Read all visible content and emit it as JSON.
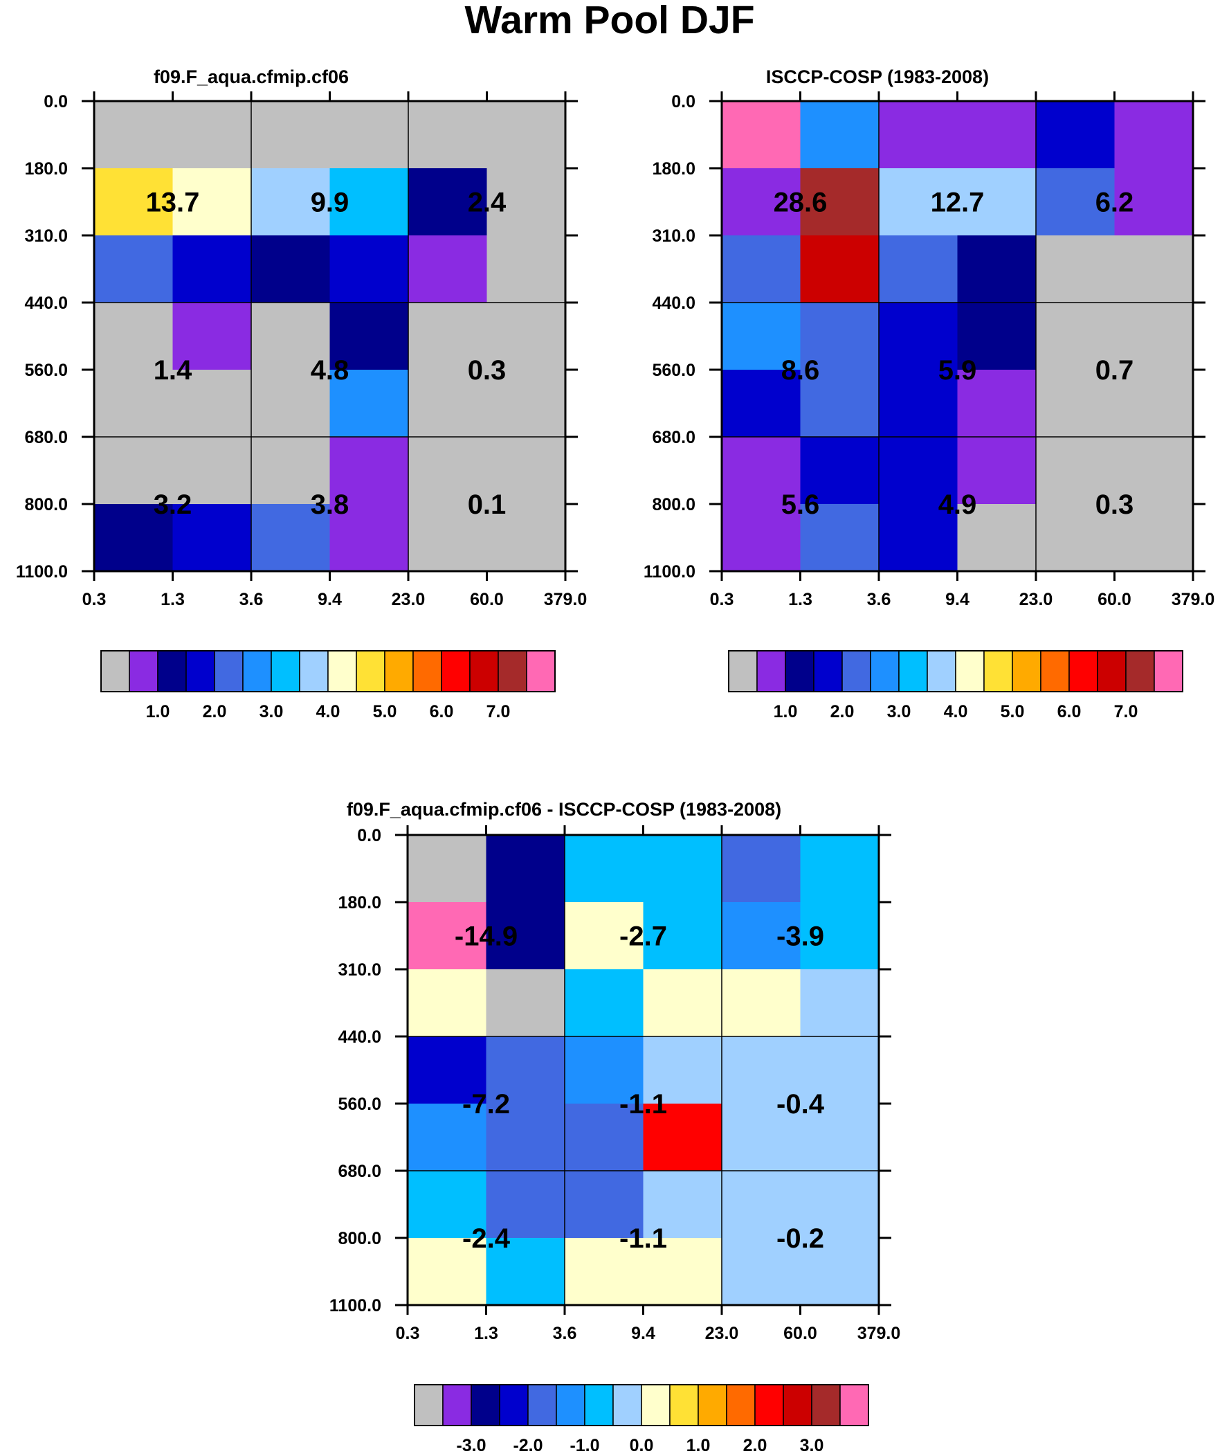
{
  "figure_title": "Warm Pool DJF",
  "colors": {
    "palette": [
      "#c0c0c0",
      "#8a2be2",
      "#00008b",
      "#0000cd",
      "#4169e1",
      "#1e90ff",
      "#00bfff",
      "#a0d0ff",
      "#ffffcc",
      "#ffe135",
      "#ffaa00",
      "#ff6a00",
      "#ff0000",
      "#cc0000",
      "#a52a2a",
      "#ff69b4"
    ],
    "grid_line": "#000000"
  },
  "chart_data": [
    {
      "type": "heatmap",
      "title": "f09.F_aqua.cfmip.cf06",
      "x_tick_labels": [
        "0.3",
        "1.3",
        "3.6",
        "9.4",
        "23.0",
        "60.0",
        "379.0"
      ],
      "y_tick_labels": [
        "0.0",
        "180.0",
        "310.0",
        "440.0",
        "560.0",
        "680.0",
        "800.0",
        "1100.0"
      ],
      "color_index": [
        [
          0,
          0,
          0,
          0,
          0,
          0
        ],
        [
          9,
          8,
          7,
          6,
          2,
          0
        ],
        [
          4,
          3,
          2,
          3,
          1,
          0
        ],
        [
          0,
          1,
          0,
          2,
          0,
          0
        ],
        [
          0,
          0,
          0,
          5,
          0,
          0
        ],
        [
          0,
          0,
          0,
          1,
          0,
          0
        ],
        [
          2,
          3,
          4,
          1,
          0,
          0
        ]
      ],
      "block_values": [
        [
          "13.7",
          "9.9",
          "2.4"
        ],
        [
          "1.4",
          "4.8",
          "0.3"
        ],
        [
          "3.2",
          "3.8",
          "0.1"
        ]
      ],
      "colorbar": {
        "labels": [
          "1.0",
          "2.0",
          "3.0",
          "4.0",
          "5.0",
          "6.0",
          "7.0"
        ]
      }
    },
    {
      "type": "heatmap",
      "title": "ISCCP-COSP (1983-2008)",
      "x_tick_labels": [
        "0.3",
        "1.3",
        "3.6",
        "9.4",
        "23.0",
        "60.0",
        "379.0"
      ],
      "y_tick_labels": [
        "0.0",
        "180.0",
        "310.0",
        "440.0",
        "560.0",
        "680.0",
        "800.0",
        "1100.0"
      ],
      "color_index": [
        [
          15,
          5,
          1,
          1,
          3,
          1
        ],
        [
          1,
          14,
          7,
          7,
          4,
          1
        ],
        [
          4,
          13,
          4,
          2,
          0,
          0
        ],
        [
          5,
          4,
          3,
          2,
          0,
          0
        ],
        [
          3,
          4,
          3,
          1,
          0,
          0
        ],
        [
          1,
          3,
          3,
          1,
          0,
          0
        ],
        [
          1,
          4,
          3,
          0,
          0,
          0
        ]
      ],
      "block_values": [
        [
          "28.6",
          "12.7",
          "6.2"
        ],
        [
          "8.6",
          "5.9",
          "0.7"
        ],
        [
          "5.6",
          "4.9",
          "0.3"
        ]
      ],
      "colorbar": {
        "labels": [
          "1.0",
          "2.0",
          "3.0",
          "4.0",
          "5.0",
          "6.0",
          "7.0"
        ]
      }
    },
    {
      "type": "heatmap",
      "title": "f09.F_aqua.cfmip.cf06 - ISCCP-COSP (1983-2008)",
      "x_tick_labels": [
        "0.3",
        "1.3",
        "3.6",
        "9.4",
        "23.0",
        "60.0",
        "379.0"
      ],
      "y_tick_labels": [
        "0.0",
        "180.0",
        "310.0",
        "440.0",
        "560.0",
        "680.0",
        "800.0",
        "1100.0"
      ],
      "color_index": [
        [
          0,
          2,
          6,
          6,
          4,
          6
        ],
        [
          15,
          2,
          8,
          6,
          5,
          6
        ],
        [
          8,
          0,
          6,
          8,
          8,
          7
        ],
        [
          3,
          4,
          5,
          7,
          7,
          7
        ],
        [
          5,
          4,
          4,
          12,
          7,
          7
        ],
        [
          6,
          4,
          4,
          7,
          7,
          7
        ],
        [
          8,
          6,
          8,
          8,
          7,
          7
        ]
      ],
      "block_values": [
        [
          "-14.9",
          "-2.7",
          "-3.9"
        ],
        [
          "-7.2",
          "-1.1",
          "-0.4"
        ],
        [
          "-2.4",
          "-1.1",
          "-0.2"
        ]
      ],
      "colorbar": {
        "labels": [
          "-3.0",
          "-2.0",
          "-1.0",
          "0.0",
          "1.0",
          "2.0",
          "3.0"
        ]
      }
    }
  ]
}
